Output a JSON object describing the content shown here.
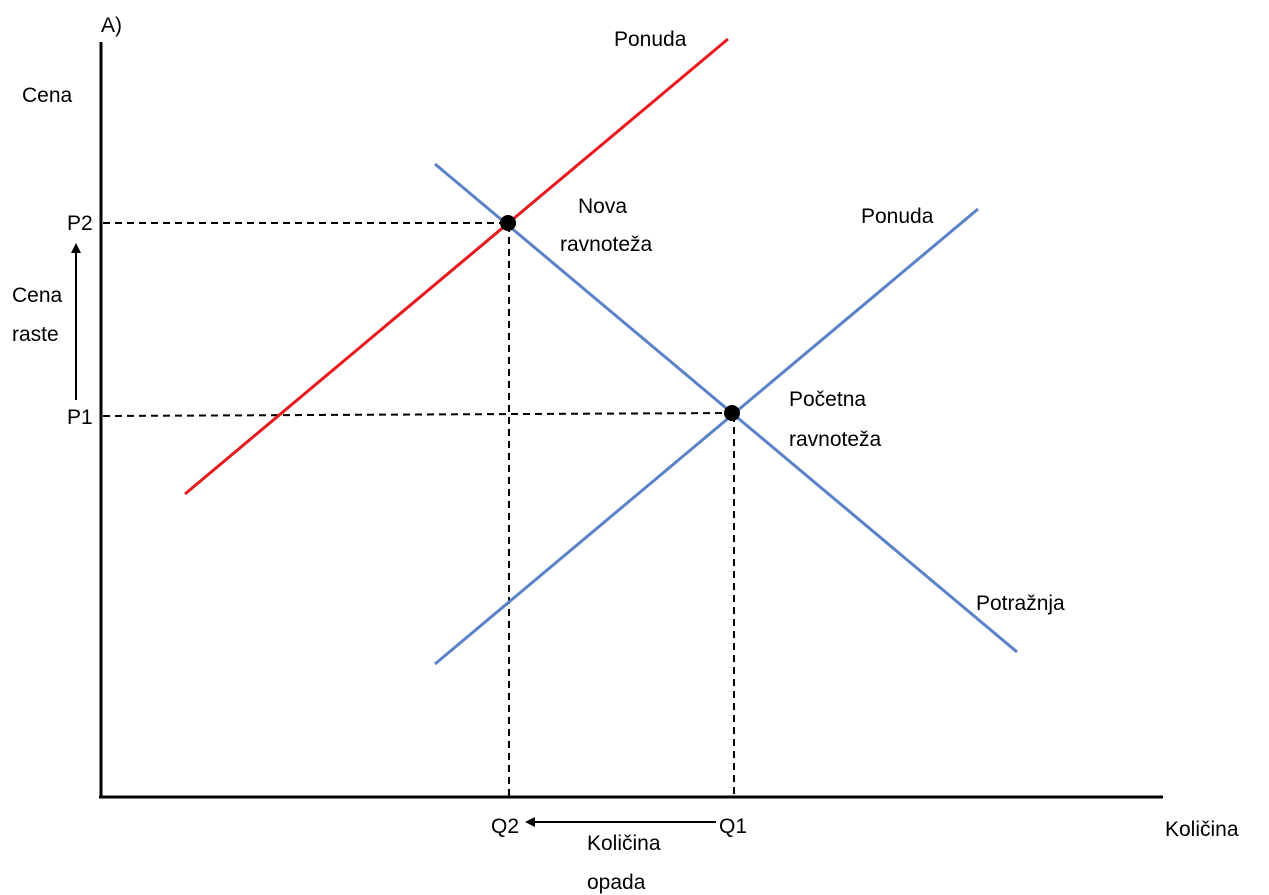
{
  "panel_label": "A)",
  "y_axis_label": "Cena",
  "x_axis_label": "Količina",
  "price_labels": {
    "p2": "P2",
    "p1": "P1"
  },
  "quantity_labels": {
    "q2": "Q2",
    "q1": "Q1"
  },
  "price_change": {
    "line1": "Cena",
    "line2": "raste"
  },
  "quantity_change": {
    "line1": "Količina",
    "line2": "opada"
  },
  "curves": {
    "new_supply": {
      "label": "Ponuda",
      "color": "#e8181c"
    },
    "original_supply": {
      "label": "Ponuda",
      "color": "#5a82c8"
    },
    "demand": {
      "label": "Potražnja",
      "color": "#5a82c8"
    }
  },
  "equilibria": {
    "new": {
      "line1": "Nova",
      "line2": "ravnoteža"
    },
    "initial": {
      "line1": "Početna",
      "line2": "ravnoteža"
    }
  }
}
